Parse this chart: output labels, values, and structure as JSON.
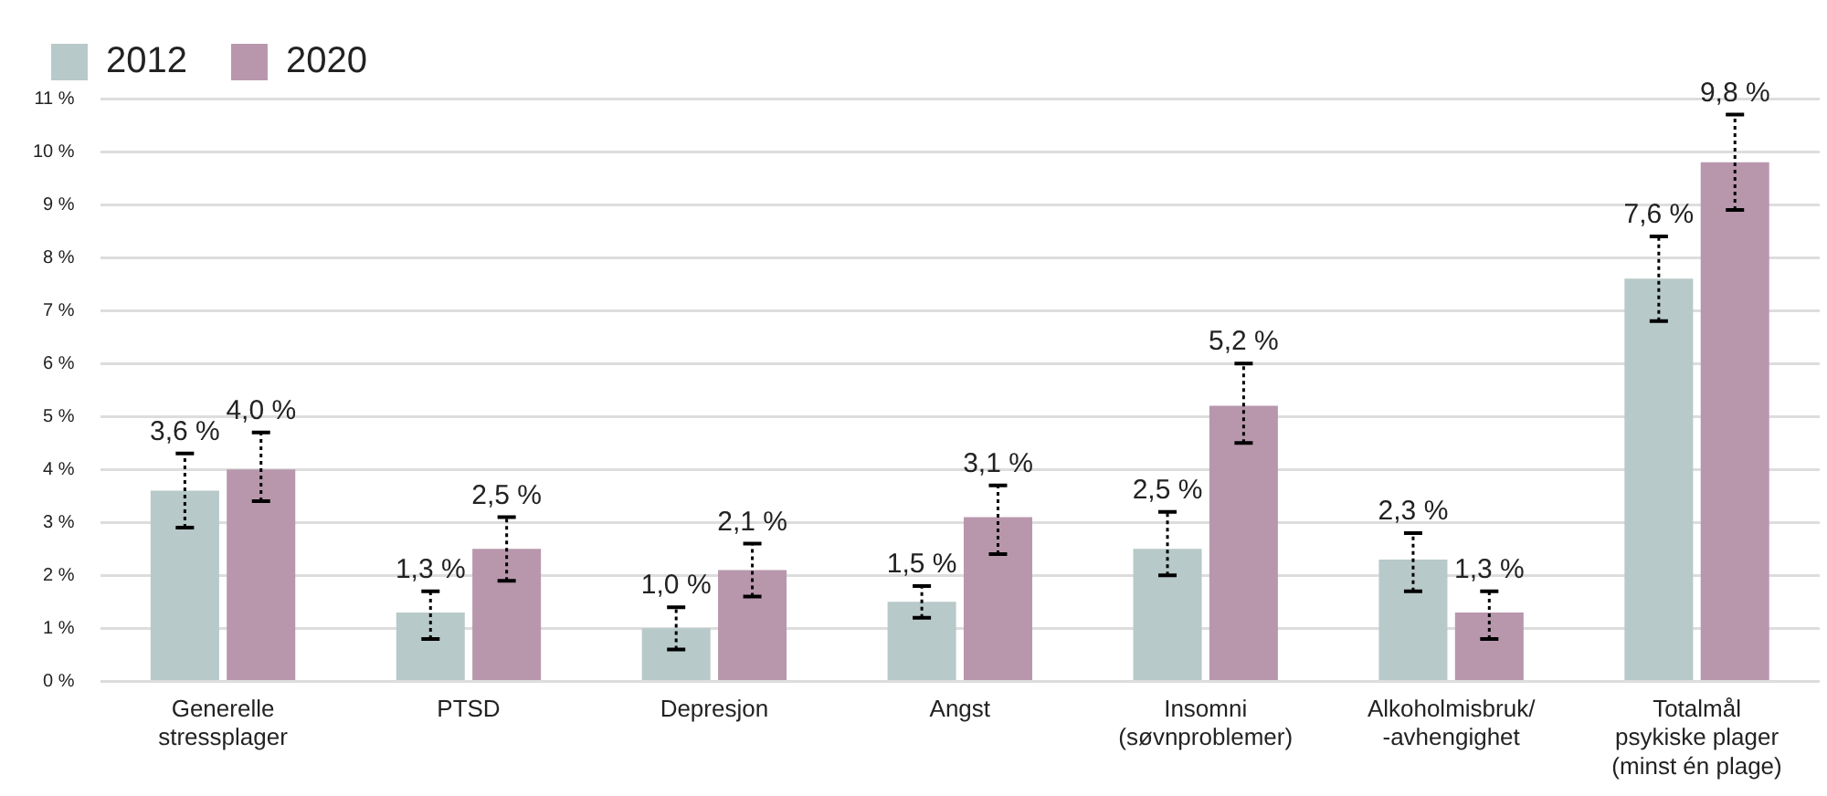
{
  "chart_data": {
    "type": "bar",
    "categories": [
      "Generelle\nstressplager",
      "PTSD",
      "Depresjon",
      "Angst",
      "Insomni\n(søvnproblemer)",
      "Alkoholmisbruk/\n-avhengighet",
      "Totalmål\npsykiske plager\n(minst én plage)"
    ],
    "series": [
      {
        "name": "2012",
        "color": "#b7c9c8",
        "values": [
          3.6,
          1.3,
          1.0,
          1.5,
          2.5,
          2.3,
          7.6
        ],
        "value_labels": [
          "3,6 %",
          "1,3 %",
          "1,0 %",
          "1,5 %",
          "2,5 %",
          "2,3 %",
          "7,6 %"
        ],
        "errors": [
          [
            2.9,
            4.3
          ],
          [
            0.8,
            1.7
          ],
          [
            0.6,
            1.4
          ],
          [
            1.2,
            1.8
          ],
          [
            2.0,
            3.2
          ],
          [
            1.7,
            2.8
          ],
          [
            6.8,
            8.4
          ]
        ]
      },
      {
        "name": "2020",
        "color": "#b897ad",
        "values": [
          4.0,
          2.5,
          2.1,
          3.1,
          5.2,
          1.3,
          9.8
        ],
        "value_labels": [
          "4,0 %",
          "2,5 %",
          "2,1 %",
          "3,1 %",
          "5,2 %",
          "1,3 %",
          "9,8 %"
        ],
        "errors": [
          [
            3.4,
            4.7
          ],
          [
            1.9,
            3.1
          ],
          [
            1.6,
            2.6
          ],
          [
            2.4,
            3.7
          ],
          [
            4.5,
            6.0
          ],
          [
            0.8,
            1.7
          ],
          [
            8.9,
            10.7
          ]
        ]
      }
    ],
    "ylim": [
      0,
      11
    ],
    "yticks": [
      {
        "value": 0,
        "label": "0 %"
      },
      {
        "value": 1,
        "label": "1 %"
      },
      {
        "value": 2,
        "label": "2 %"
      },
      {
        "value": 3,
        "label": "3 %"
      },
      {
        "value": 4,
        "label": "4 %"
      },
      {
        "value": 5,
        "label": "5 %"
      },
      {
        "value": 6,
        "label": "6 %"
      },
      {
        "value": 7,
        "label": "7 %"
      },
      {
        "value": 8,
        "label": "8 %"
      },
      {
        "value": 9,
        "label": "9 %"
      },
      {
        "value": 10,
        "label": "10 %"
      },
      {
        "value": 11,
        "label": "11 %"
      }
    ],
    "grid": "y",
    "legend": "top left"
  }
}
